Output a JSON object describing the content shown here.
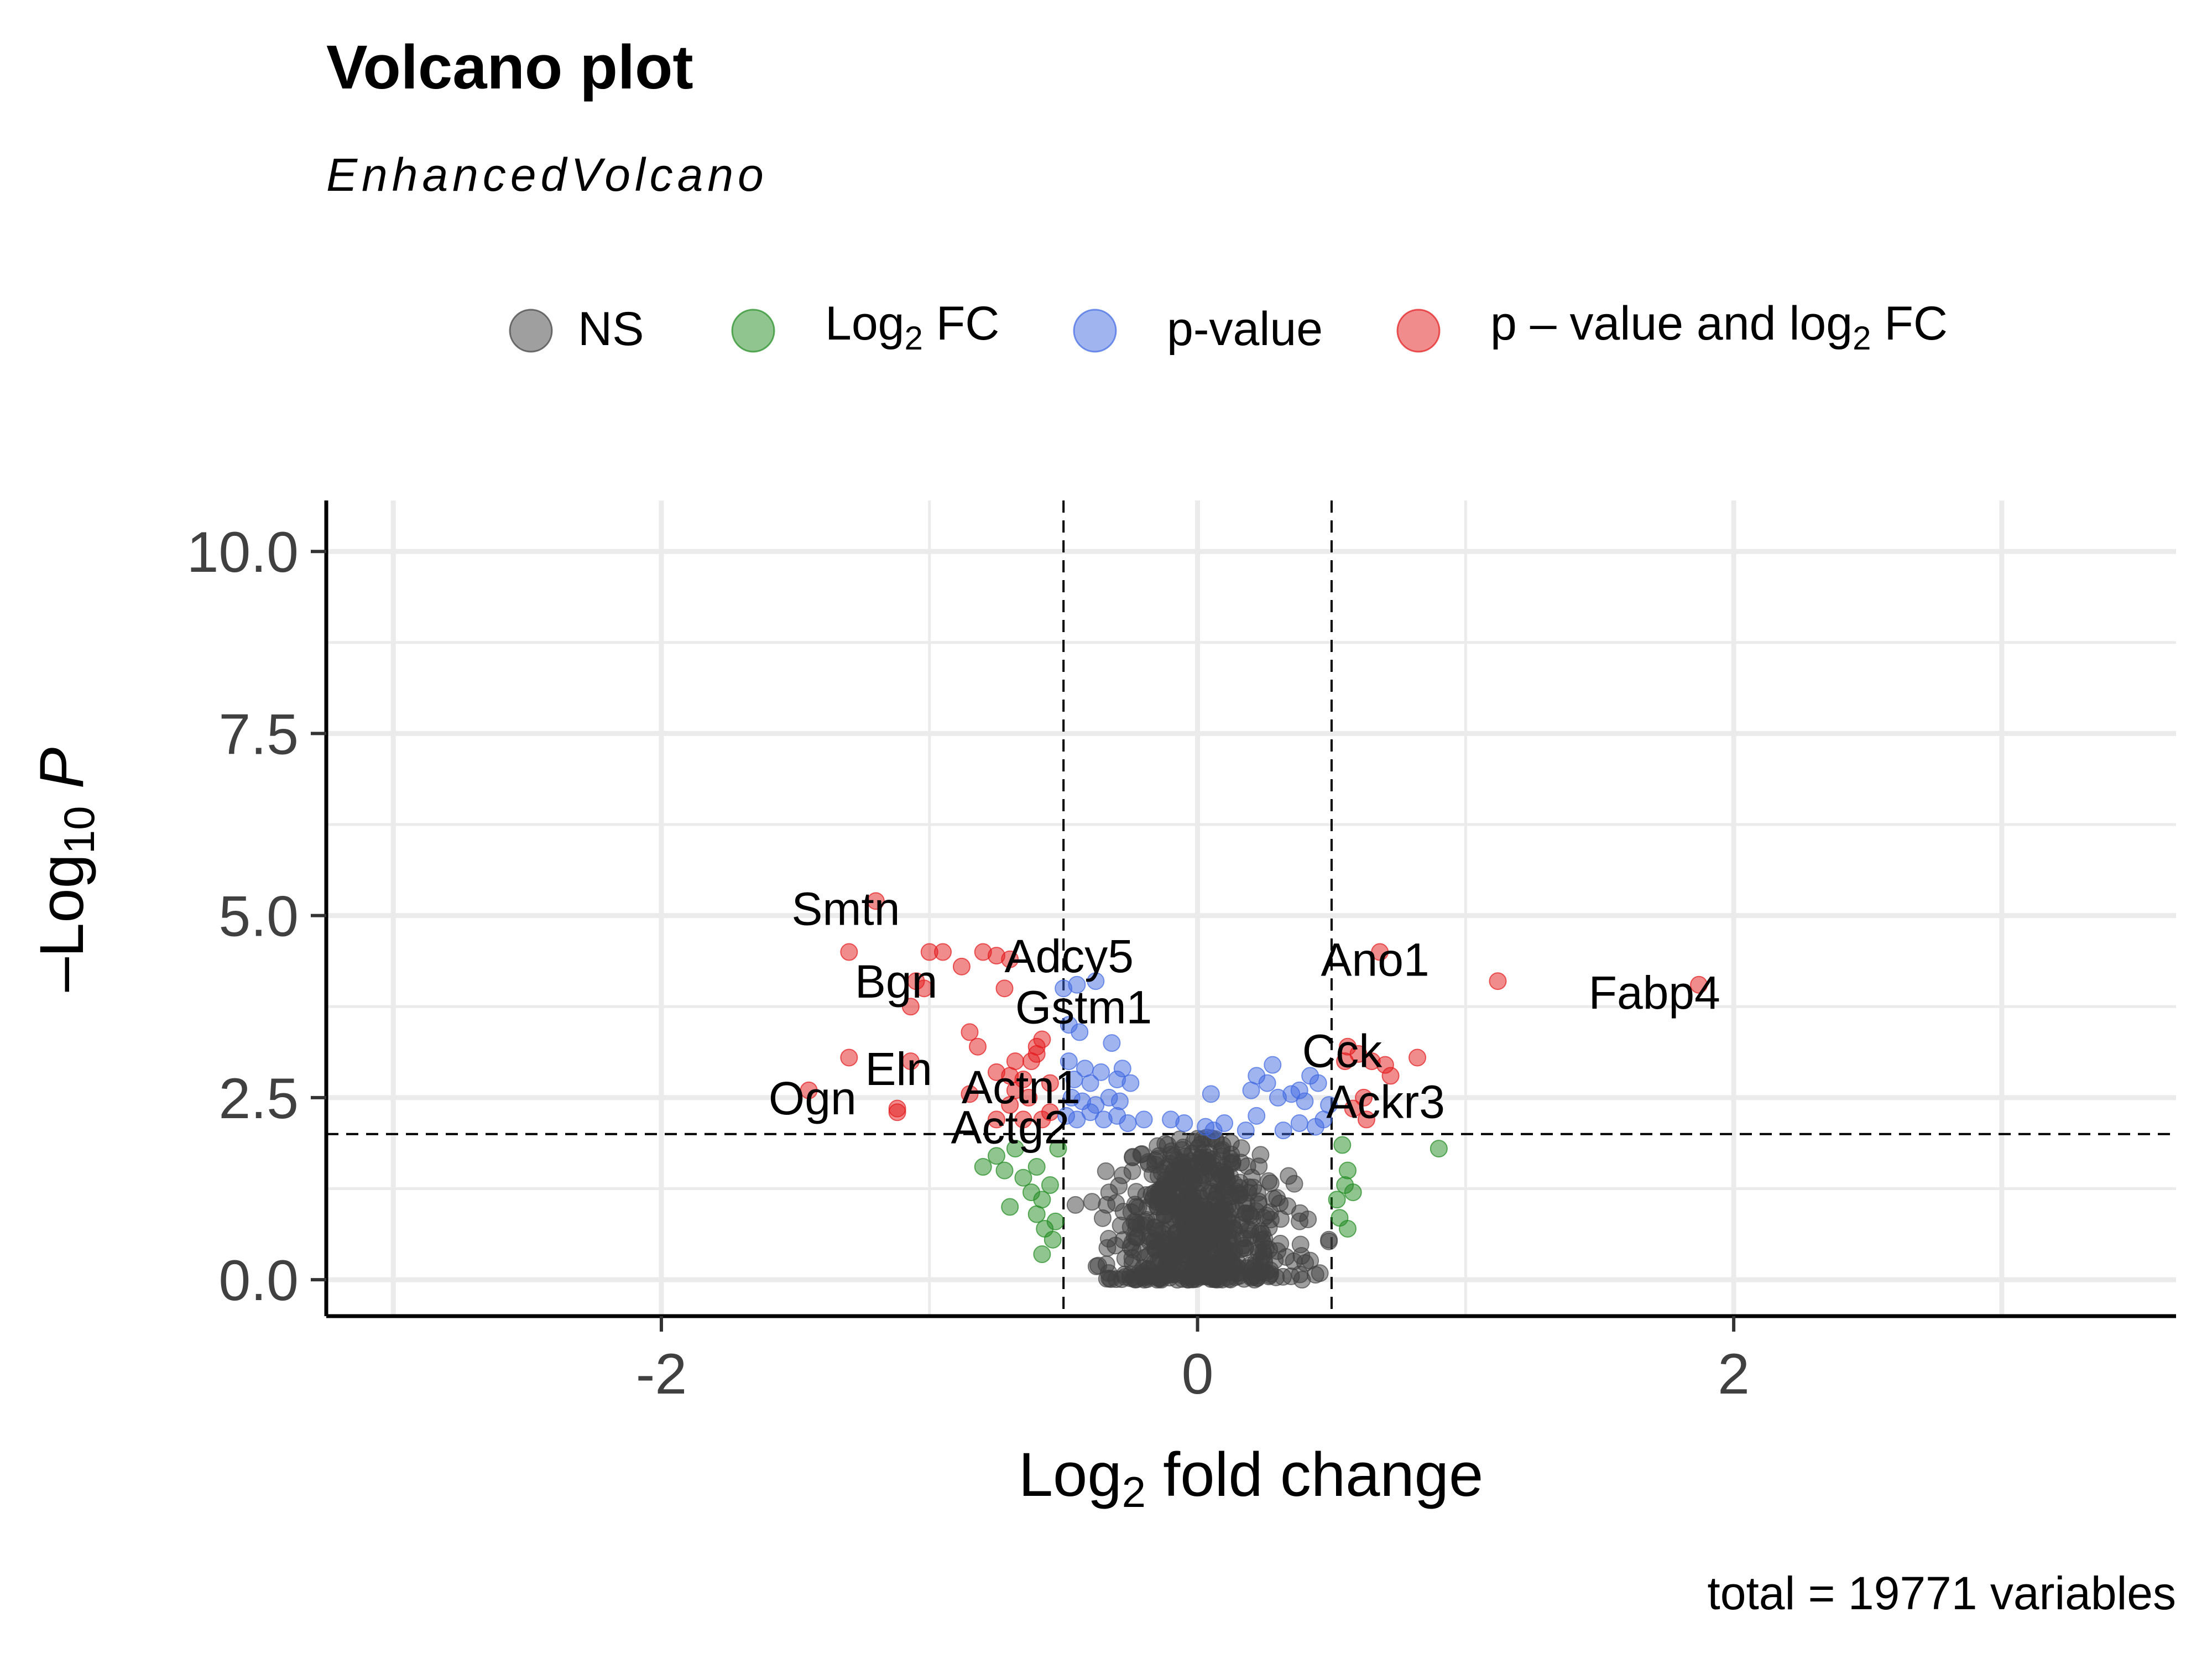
{
  "chart_data": {
    "type": "scatter",
    "title": "Volcano plot",
    "subtitle": "EnhancedVolcano",
    "xlabel": "Log2 fold change",
    "ylabel": "-Log10 P",
    "xlim": [
      -3.25,
      3.65
    ],
    "ylim": [
      -0.5,
      10.7
    ],
    "x_ticks": [
      -2,
      0,
      2
    ],
    "x_tick_labels": [
      "-2",
      "0",
      "2"
    ],
    "y_ticks": [
      0,
      2.5,
      5,
      7.5,
      10
    ],
    "y_tick_labels": [
      "0.0",
      "2.5",
      "5.0",
      "7.5",
      "10.0"
    ],
    "grid": true,
    "cutoffs": {
      "log2fc": [
        -0.5,
        0.5
      ],
      "neglog10p": 2.0
    },
    "legend_position": "top",
    "caption": "total = 19771 variables",
    "colors": {
      "NS": "#404040",
      "FC": "#228B22",
      "P": "#4169E1",
      "FC_P": "#E31A1C"
    },
    "legend": [
      {
        "key": "NS",
        "base": "NS",
        "sub": "",
        "rest": ""
      },
      {
        "key": "FC",
        "base": "Log",
        "sub": "2",
        "rest": " FC"
      },
      {
        "key": "P",
        "base": "p-value",
        "sub": "",
        "rest": ""
      },
      {
        "key": "FC_P",
        "base": "p – value and log",
        "sub": "2",
        "rest": " FC"
      }
    ],
    "series": [
      {
        "key": "FC_P",
        "points": [
          [
            -1.2,
            5.2
          ],
          [
            -1.3,
            4.5
          ],
          [
            -1.0,
            4.5
          ],
          [
            -0.95,
            4.5
          ],
          [
            -0.8,
            4.5
          ],
          [
            -0.75,
            4.45
          ],
          [
            -0.7,
            4.4
          ],
          [
            -0.88,
            4.3
          ],
          [
            -1.05,
            4.1
          ],
          [
            -1.02,
            4.0
          ],
          [
            -0.72,
            4.0
          ],
          [
            -1.07,
            3.75
          ],
          [
            -0.85,
            3.4
          ],
          [
            -0.82,
            3.2
          ],
          [
            -0.58,
            3.3
          ],
          [
            -0.6,
            3.2
          ],
          [
            -1.3,
            3.05
          ],
          [
            -1.07,
            3.0
          ],
          [
            -0.68,
            3.0
          ],
          [
            -0.62,
            3.0
          ],
          [
            -0.6,
            3.1
          ],
          [
            -0.75,
            2.85
          ],
          [
            -0.7,
            2.8
          ],
          [
            -0.65,
            2.75
          ],
          [
            -0.55,
            2.7
          ],
          [
            -0.68,
            2.6
          ],
          [
            -0.85,
            2.55
          ],
          [
            -1.45,
            2.6
          ],
          [
            -1.12,
            2.35
          ],
          [
            -1.12,
            2.3
          ],
          [
            -0.7,
            2.4
          ],
          [
            -0.63,
            2.5
          ],
          [
            -0.55,
            2.3
          ],
          [
            -0.58,
            2.2
          ],
          [
            -0.65,
            2.2
          ],
          [
            -0.75,
            2.2
          ],
          [
            0.68,
            4.5
          ],
          [
            1.12,
            4.1
          ],
          [
            1.87,
            4.05
          ],
          [
            0.56,
            3.2
          ],
          [
            0.6,
            3.1
          ],
          [
            0.55,
            3.0
          ],
          [
            0.65,
            3.0
          ],
          [
            0.7,
            2.95
          ],
          [
            0.82,
            3.05
          ],
          [
            0.72,
            2.8
          ],
          [
            0.62,
            2.5
          ],
          [
            0.58,
            2.35
          ],
          [
            0.63,
            2.2
          ]
        ]
      },
      {
        "key": "FC",
        "points": [
          [
            -0.8,
            1.55
          ],
          [
            -0.75,
            1.7
          ],
          [
            -0.72,
            1.5
          ],
          [
            -0.68,
            1.8
          ],
          [
            -0.65,
            1.4
          ],
          [
            -0.6,
            1.55
          ],
          [
            -0.62,
            1.2
          ],
          [
            -0.58,
            1.1
          ],
          [
            -0.55,
            1.3
          ],
          [
            -0.7,
            1.0
          ],
          [
            -0.6,
            0.9
          ],
          [
            -0.57,
            0.7
          ],
          [
            -0.53,
            0.8
          ],
          [
            -0.54,
            0.55
          ],
          [
            -0.58,
            0.35
          ],
          [
            -0.52,
            1.8
          ],
          [
            0.54,
            1.85
          ],
          [
            0.56,
            1.5
          ],
          [
            0.55,
            1.3
          ],
          [
            0.58,
            1.2
          ],
          [
            0.53,
            0.85
          ],
          [
            0.9,
            1.8
          ],
          [
            0.52,
            1.1
          ],
          [
            0.56,
            0.7
          ]
        ]
      },
      {
        "key": "P",
        "points": [
          [
            -0.5,
            4.0
          ],
          [
            -0.45,
            4.05
          ],
          [
            -0.38,
            4.1
          ],
          [
            -0.48,
            3.5
          ],
          [
            -0.44,
            3.4
          ],
          [
            -0.32,
            3.25
          ],
          [
            -0.48,
            3.0
          ],
          [
            -0.42,
            2.9
          ],
          [
            -0.36,
            2.85
          ],
          [
            -0.28,
            2.9
          ],
          [
            -0.46,
            2.75
          ],
          [
            -0.4,
            2.7
          ],
          [
            -0.3,
            2.75
          ],
          [
            -0.25,
            2.7
          ],
          [
            -0.47,
            2.5
          ],
          [
            -0.43,
            2.45
          ],
          [
            -0.38,
            2.4
          ],
          [
            -0.33,
            2.5
          ],
          [
            -0.29,
            2.45
          ],
          [
            -0.49,
            2.25
          ],
          [
            -0.45,
            2.2
          ],
          [
            -0.4,
            2.3
          ],
          [
            -0.35,
            2.2
          ],
          [
            -0.3,
            2.25
          ],
          [
            -0.26,
            2.15
          ],
          [
            -0.2,
            2.2
          ],
          [
            -0.1,
            2.2
          ],
          [
            -0.05,
            2.15
          ],
          [
            0.03,
            2.1
          ],
          [
            0.06,
            2.05
          ],
          [
            0.18,
            2.05
          ],
          [
            0.05,
            2.55
          ],
          [
            0.2,
            2.6
          ],
          [
            0.22,
            2.8
          ],
          [
            0.26,
            2.7
          ],
          [
            0.3,
            2.5
          ],
          [
            0.35,
            2.55
          ],
          [
            0.38,
            2.6
          ],
          [
            0.4,
            2.45
          ],
          [
            0.42,
            2.8
          ],
          [
            0.45,
            2.7
          ],
          [
            0.47,
            2.2
          ],
          [
            0.49,
            2.4
          ],
          [
            0.38,
            2.15
          ],
          [
            0.32,
            2.05
          ],
          [
            0.44,
            2.1
          ],
          [
            0.22,
            2.25
          ],
          [
            0.1,
            2.15
          ],
          [
            0.28,
            2.95
          ]
        ]
      }
    ],
    "ns_cloud": {
      "count": 650,
      "x_sd": 0.16,
      "y_max": 1.98
    },
    "labels": [
      {
        "text": "Smtn",
        "x": -1.2,
        "y": 5.1,
        "anchor": "end",
        "dx": 0.09
      },
      {
        "text": "Adcy5",
        "x": -0.66,
        "y": 4.45,
        "anchor": "start",
        "dx": -0.06
      },
      {
        "text": "Bgn",
        "x": -1.05,
        "y": 4.1,
        "anchor": "end",
        "dx": 0.08
      },
      {
        "text": "Gstm1",
        "x": -0.6,
        "y": 3.75,
        "anchor": "start",
        "dx": -0.08
      },
      {
        "text": "Eln",
        "x": -1.12,
        "y": 2.9,
        "anchor": "start",
        "dx": -0.12
      },
      {
        "text": "Actn1",
        "x": -0.63,
        "y": 2.65,
        "anchor": "start",
        "dx": -0.25
      },
      {
        "text": "Ogn",
        "x": -1.45,
        "y": 2.5,
        "anchor": "start",
        "dx": -0.15
      },
      {
        "text": "Actg2",
        "x": -0.62,
        "y": 2.1,
        "anchor": "start",
        "dx": -0.3
      },
      {
        "text": "Ano1",
        "x": 0.68,
        "y": 4.4,
        "anchor": "start",
        "dx": -0.22
      },
      {
        "text": "Fabp4",
        "x": 1.87,
        "y": 3.95,
        "anchor": "end",
        "dx": 0.08
      },
      {
        "text": "Cck",
        "x": 0.56,
        "y": 3.15,
        "anchor": "start",
        "dx": -0.17
      },
      {
        "text": "Ackr3",
        "x": 0.58,
        "y": 2.45,
        "anchor": "start",
        "dx": -0.1
      }
    ]
  }
}
